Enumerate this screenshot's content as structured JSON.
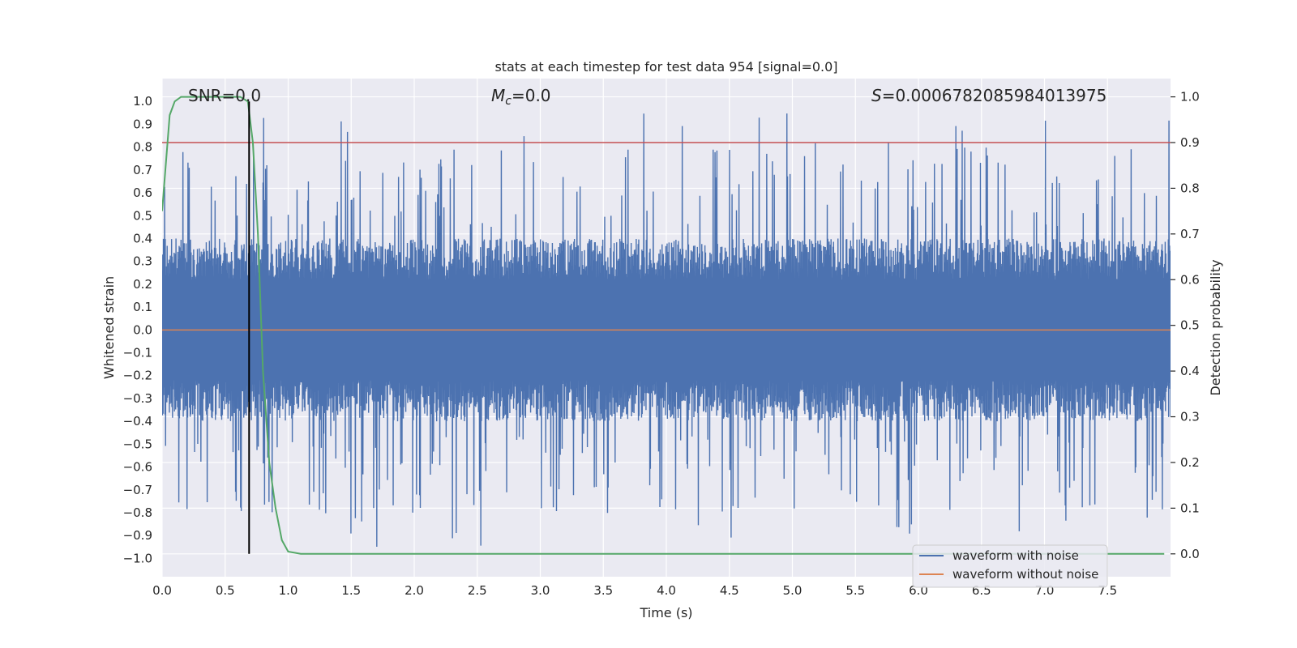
{
  "chart_data": {
    "type": "line",
    "title": "stats at each timestep for test data 954 [signal=0.0]",
    "xlabel": "Time (s)",
    "ylabel": "Whitened strain",
    "y2label": "Detection probability",
    "xlim": [
      0.0,
      8.0
    ],
    "ylim": [
      -1.08,
      1.1
    ],
    "y2lim": [
      -0.05,
      1.04
    ],
    "x_ticks": [
      "0.0",
      "0.5",
      "1.0",
      "1.5",
      "2.0",
      "2.5",
      "3.0",
      "3.5",
      "4.0",
      "4.5",
      "5.0",
      "5.5",
      "6.0",
      "6.5",
      "7.0",
      "7.5"
    ],
    "y_ticks": [
      "1.0",
      "0.9",
      "0.8",
      "0.7",
      "0.6",
      "0.5",
      "0.4",
      "0.3",
      "0.2",
      "0.1",
      "0.0",
      "-0.1",
      "-0.2",
      "-0.3",
      "-0.4",
      "-0.5",
      "-0.6",
      "-0.7",
      "-0.8",
      "-0.9",
      "-1.0"
    ],
    "y2_ticks": [
      "1.0",
      "0.9",
      "0.8",
      "0.7",
      "0.6",
      "0.5",
      "0.4",
      "0.3",
      "0.2",
      "0.1",
      "0.0"
    ],
    "annotations": {
      "snr": "SNR=0.0",
      "mc_symbol": "M",
      "mc_sub": "c",
      "mc_value": "=0.0",
      "s_symbol": "S",
      "s_value": "=0.0006782085984013975"
    },
    "threshold": {
      "axis": "right",
      "value": 0.9,
      "color": "#c44e52"
    },
    "vertical_marker": {
      "x": 0.69,
      "color": "#000000"
    },
    "series": [
      {
        "name": "waveform with noise",
        "color": "#4c72b0",
        "axis": "left",
        "note": "dense noise, mostly within +-0.4 with spikes to about +-0.95",
        "amplitude_typical": 0.4,
        "amplitude_peak": 0.95
      },
      {
        "name": "waveform without noise",
        "color": "#dd8452",
        "axis": "left",
        "x": [
          0.0,
          8.0
        ],
        "y": [
          0.0,
          0.0
        ]
      },
      {
        "name": "detection probability",
        "color": "#55a868",
        "axis": "right",
        "x": [
          0.0,
          0.06,
          0.1,
          0.15,
          0.25,
          0.4,
          0.55,
          0.62,
          0.68,
          0.72,
          0.76,
          0.8,
          0.85,
          0.9,
          0.95,
          1.0,
          1.1,
          2.0,
          3.0,
          4.0,
          5.0,
          6.0,
          7.0,
          7.5,
          7.95
        ],
        "y": [
          0.75,
          0.96,
          0.99,
          1.0,
          1.0,
          1.0,
          1.0,
          1.0,
          0.99,
          0.9,
          0.7,
          0.4,
          0.2,
          0.1,
          0.03,
          0.005,
          0.0,
          0.0,
          0.0,
          0.0,
          0.0,
          0.0,
          0.0,
          0.0,
          0.0
        ]
      }
    ],
    "legend": {
      "placement": "bottom-right",
      "entries": [
        {
          "label": "waveform with noise",
          "color": "#4c72b0"
        },
        {
          "label": "waveform without noise",
          "color": "#dd8452"
        }
      ]
    },
    "style": {
      "plot_bg": "#eaeaf2",
      "grid": "#ffffff"
    }
  }
}
